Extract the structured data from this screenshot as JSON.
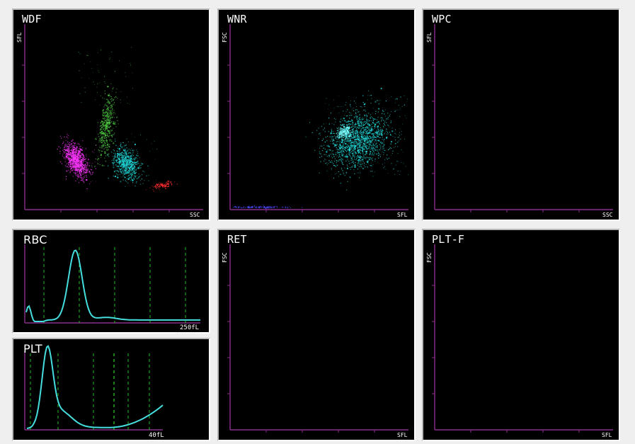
{
  "colors": {
    "background": "#efefef",
    "panel": "#000000",
    "axis": "#8b2d8b",
    "grid": "#20c020",
    "curve": "#45dede",
    "white": "#ffffff"
  },
  "panels": {
    "wdf": {
      "title": "WDF",
      "x_label": "SSC",
      "y_label": "SFL"
    },
    "wnr": {
      "title": "WNR",
      "x_label": "SFL",
      "y_label": "FSC"
    },
    "wpc": {
      "title": "WPC",
      "x_label": "SSC",
      "y_label": "SFL"
    },
    "rbc": {
      "title": "RBC",
      "scale": "250fL"
    },
    "plt": {
      "title": "PLT",
      "scale": "40fL"
    },
    "ret": {
      "title": "RET",
      "x_label": "SFL",
      "y_label": "FSC"
    },
    "pltf": {
      "title": "PLT-F",
      "x_label": "SFL",
      "y_label": "FSC"
    }
  },
  "clusters": {
    "wdf": [
      {
        "color": "#ff36ff",
        "count": 1050,
        "spread": 0.55
      },
      {
        "color": "#50cc43",
        "count": 520,
        "spread": 0.65
      },
      {
        "color": "#20d4d4",
        "count": 760,
        "spread": 0.55
      },
      {
        "color": "#ff2d2d",
        "count": 120,
        "spread": 0.45
      }
    ],
    "wnr": [
      {
        "color": "#24dede",
        "count": 1600,
        "spread": 0.85
      },
      {
        "color": "#4b4bff",
        "count": 140,
        "spread": 0.3
      }
    ]
  },
  "histograms": {
    "rbc": {
      "peak_level": 0.93,
      "baseline_level": 0.02,
      "guide_count": 6
    },
    "plt": {
      "peak_level": 0.94,
      "tail_level": 0.3,
      "guide_count": 6
    }
  }
}
